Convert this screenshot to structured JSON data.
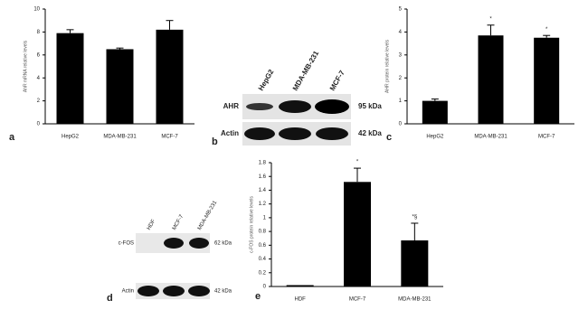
{
  "chart_data": [
    {
      "type": "bar",
      "label": "a",
      "y_label": "AhR mRNA relative levels",
      "categories": [
        "HepG2",
        "MDA-MB-231",
        "MCF-7"
      ],
      "series": [
        {
          "color": "#000000",
          "values": [
            7.9,
            6.5,
            8.2
          ],
          "errors": [
            0.3,
            0.1,
            0.8
          ]
        }
      ],
      "ylim": [
        0,
        10
      ],
      "yticks": [
        0,
        2,
        4,
        6,
        8,
        10
      ]
    },
    {
      "type": "bar",
      "label": "c",
      "y_label": "AHR protein relative levels",
      "categories": [
        "HepG2",
        "MDA-MB-231",
        "MCF-7"
      ],
      "series": [
        {
          "color": "#000000",
          "values": [
            1.0,
            3.85,
            3.75
          ],
          "errors": [
            0.08,
            0.45,
            0.1
          ]
        }
      ],
      "annotations": [
        null,
        "*",
        "*"
      ],
      "ylim": [
        0,
        5
      ],
      "yticks": [
        0,
        1,
        2,
        3,
        4,
        5
      ]
    },
    {
      "type": "bar",
      "label": "e",
      "y_label": "c-FOS protein relative levels",
      "categories": [
        "HDF",
        "MCF-7",
        "MDA-MB-231"
      ],
      "series": [
        {
          "color": "#000000",
          "values": [
            0.02,
            1.52,
            0.67
          ],
          "errors": [
            0.0,
            0.2,
            0.25
          ]
        }
      ],
      "annotations": [
        null,
        "*",
        "*§"
      ],
      "ylim": [
        0,
        1.8
      ],
      "yticks": [
        0,
        0.2,
        0.4,
        0.6,
        0.8,
        1,
        1.2,
        1.4,
        1.6,
        1.8
      ]
    }
  ],
  "blots": [
    {
      "label": "b",
      "lanes": [
        "HepG2",
        "MDA-MB-231",
        "MCF-7"
      ],
      "rows": [
        "AHR",
        "Actin"
      ],
      "sizes": [
        "95 kDa",
        "42 kDa"
      ]
    },
    {
      "label": "d",
      "lanes": [
        "HDF",
        "MCF-7",
        "MDA-MB-231"
      ],
      "rows": [
        "c-FOS",
        "Actin"
      ],
      "sizes": [
        "62 kDa",
        "42 kDa"
      ]
    }
  ]
}
